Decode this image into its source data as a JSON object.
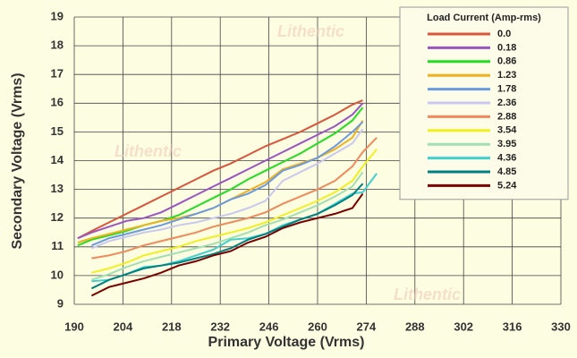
{
  "chart_data": {
    "type": "line",
    "xlabel": "Primary Voltage (Vrms)",
    "ylabel": "Secondary Voltage (Vrms)",
    "legend_title": "Load Current (Amp-rms)",
    "legend": "upper right",
    "grid": true,
    "watermark": "Lithentic",
    "xlim": [
      190,
      330
    ],
    "xticks": [
      190,
      204,
      218,
      232,
      246,
      260,
      274,
      288,
      302,
      316,
      330
    ],
    "ylim": [
      9,
      19
    ],
    "yticks": [
      9,
      10,
      11,
      12,
      13,
      14,
      15,
      16,
      17,
      18,
      19
    ],
    "x": [
      191,
      195,
      200,
      205,
      210,
      215,
      220,
      225,
      230,
      235,
      240,
      245,
      250,
      255,
      260,
      265,
      270,
      273,
      277
    ],
    "series": [
      {
        "name": "0.0",
        "color": "#d9553b",
        "values": [
          11.3,
          11.55,
          11.85,
          12.15,
          12.45,
          12.75,
          13.05,
          13.35,
          13.65,
          13.9,
          14.2,
          14.5,
          14.75,
          15.0,
          15.3,
          15.6,
          15.95,
          16.1,
          null
        ]
      },
      {
        "name": "0.18",
        "color": "#9a55c0",
        "values": [
          11.3,
          11.5,
          11.7,
          11.9,
          12.0,
          12.2,
          12.5,
          12.8,
          13.1,
          13.4,
          13.7,
          14.0,
          14.3,
          14.6,
          14.9,
          15.2,
          15.6,
          16.0,
          null
        ]
      },
      {
        "name": "0.86",
        "color": "#22dd22",
        "values": [
          11.05,
          11.25,
          11.4,
          11.55,
          11.75,
          11.9,
          12.1,
          12.4,
          12.7,
          13.0,
          13.35,
          13.65,
          13.95,
          14.25,
          14.6,
          14.95,
          15.4,
          15.85,
          null
        ]
      },
      {
        "name": "1.23",
        "color": "#f0b020",
        "values": [
          11.15,
          11.3,
          11.45,
          11.6,
          11.75,
          11.9,
          12.0,
          12.15,
          12.35,
          12.65,
          12.95,
          13.25,
          13.7,
          13.9,
          14.1,
          14.4,
          14.8,
          15.4,
          null
        ]
      },
      {
        "name": "1.78",
        "color": "#6a9be0",
        "values": [
          null,
          11.05,
          11.3,
          11.45,
          11.6,
          11.75,
          11.95,
          12.15,
          12.35,
          12.65,
          12.85,
          13.15,
          13.65,
          13.85,
          14.1,
          14.5,
          15.0,
          15.35,
          null
        ]
      },
      {
        "name": "2.36",
        "color": "#c8c8f0",
        "values": [
          null,
          10.95,
          11.2,
          11.35,
          11.5,
          11.6,
          11.75,
          11.85,
          12.0,
          12.15,
          12.35,
          12.6,
          13.3,
          13.6,
          13.9,
          14.25,
          14.6,
          15.1,
          null
        ]
      },
      {
        "name": "2.88",
        "color": "#f08a5a",
        "values": [
          null,
          10.6,
          10.7,
          10.85,
          11.05,
          11.2,
          11.35,
          11.5,
          11.7,
          11.85,
          12.0,
          12.2,
          12.5,
          12.75,
          13.0,
          13.3,
          13.8,
          14.3,
          14.8
        ]
      },
      {
        "name": "3.54",
        "color": "#f0f020",
        "values": [
          null,
          10.1,
          10.25,
          10.45,
          10.7,
          10.85,
          11.0,
          11.2,
          11.35,
          11.5,
          11.65,
          11.85,
          12.1,
          12.35,
          12.6,
          12.9,
          13.3,
          13.8,
          14.4
        ]
      },
      {
        "name": "3.95",
        "color": "#a0e0b0",
        "values": [
          null,
          9.85,
          10.05,
          10.3,
          10.5,
          10.65,
          10.8,
          10.95,
          11.1,
          11.3,
          11.5,
          11.75,
          11.95,
          12.2,
          12.45,
          12.75,
          13.1,
          13.6,
          null
        ]
      },
      {
        "name": "4.36",
        "color": "#40d0d0",
        "values": [
          null,
          9.8,
          9.85,
          10.05,
          10.3,
          10.35,
          10.5,
          10.7,
          10.9,
          11.25,
          11.3,
          11.45,
          11.75,
          11.95,
          12.15,
          12.5,
          12.85,
          12.9,
          13.55
        ]
      },
      {
        "name": "4.85",
        "color": "#008080",
        "values": [
          null,
          9.55,
          9.85,
          10.05,
          10.25,
          10.35,
          10.45,
          10.6,
          10.75,
          10.95,
          11.25,
          11.45,
          11.7,
          11.95,
          12.15,
          12.45,
          12.8,
          13.2,
          null
        ]
      },
      {
        "name": "5.24",
        "color": "#7a0000",
        "values": [
          null,
          9.3,
          9.6,
          9.75,
          9.9,
          10.1,
          10.35,
          10.5,
          10.7,
          10.85,
          11.15,
          11.35,
          11.65,
          11.85,
          12.0,
          12.15,
          12.35,
          12.85,
          null
        ]
      }
    ]
  }
}
